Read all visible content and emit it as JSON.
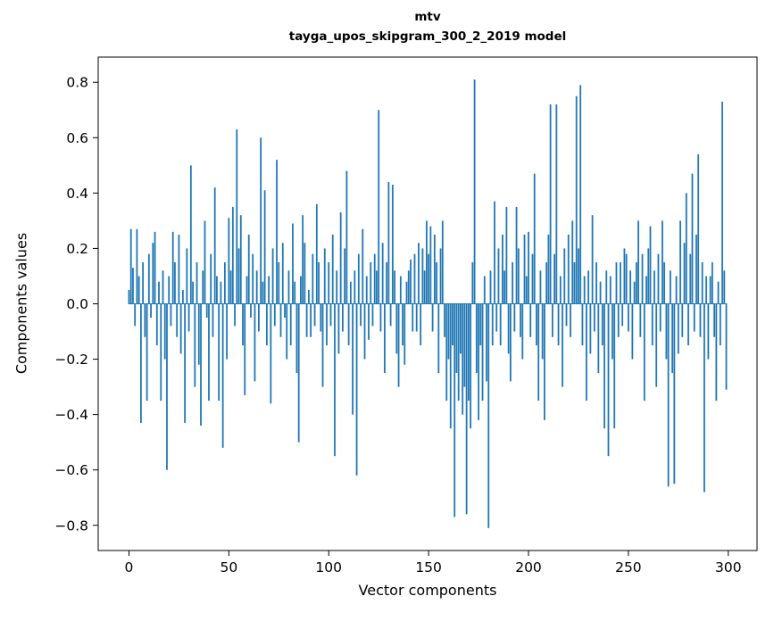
{
  "figure": {
    "title_line1": "mtv",
    "title_line2": "tayga_upos_skipgram_300_2_2019 model",
    "xlabel": "Vector components",
    "ylabel": "Components values"
  },
  "chart_data": {
    "type": "bar",
    "title": "mtv\ntayga_upos_skipgram_300_2_2019 model",
    "xlabel": "Vector components",
    "ylabel": "Components values",
    "bar_color": "#1f77b4",
    "spine_color": "#000000",
    "grid": false,
    "legend": false,
    "xlim": [
      -15.4,
      314.4
    ],
    "ylim": [
      -0.891,
      0.891
    ],
    "x_ticks": [
      0,
      50,
      100,
      150,
      200,
      250,
      300
    ],
    "y_ticks": [
      -0.8,
      -0.6,
      -0.4,
      -0.2,
      0.0,
      0.2,
      0.4,
      0.6,
      0.8
    ],
    "x": "index 0..299",
    "values": [
      0.05,
      0.27,
      0.13,
      -0.08,
      0.27,
      0.1,
      -0.43,
      0.15,
      -0.12,
      -0.35,
      0.18,
      -0.05,
      0.22,
      0.26,
      -0.15,
      0.08,
      -0.35,
      0.12,
      -0.2,
      -0.6,
      0.1,
      -0.08,
      0.26,
      0.15,
      -0.12,
      0.25,
      -0.18,
      0.05,
      -0.43,
      0.2,
      -0.1,
      0.5,
      0.08,
      -0.3,
      0.15,
      -0.22,
      -0.44,
      0.12,
      0.3,
      -0.05,
      -0.35,
      0.18,
      -0.12,
      0.42,
      0.1,
      -0.35,
      0.08,
      -0.52,
      0.15,
      -0.2,
      0.31,
      0.12,
      0.35,
      -0.08,
      0.63,
      0.2,
      0.32,
      -0.15,
      -0.33,
      0.1,
      0.25,
      -0.05,
      0.18,
      -0.28,
      0.12,
      -0.1,
      0.6,
      0.08,
      0.41,
      -0.15,
      0.1,
      -0.36,
      0.2,
      -0.08,
      0.52,
      0.15,
      -0.12,
      0.22,
      -0.05,
      -0.2,
      0.12,
      -0.15,
      0.29,
      0.08,
      -0.25,
      -0.5,
      0.1,
      0.32,
      0.22,
      -0.12,
      0.05,
      -0.12,
      0.18,
      -0.08,
      0.36,
      0.15,
      -0.1,
      -0.3,
      0.2,
      -0.15,
      0.15,
      -0.08,
      0.25,
      -0.55,
      0.12,
      -0.18,
      0.33,
      -0.1,
      0.2,
      0.48,
      -0.15,
      0.08,
      -0.4,
      0.12,
      -0.62,
      0.18,
      -0.08,
      0.27,
      -0.2,
      0.1,
      -0.13,
      0.15,
      -0.08,
      0.18,
      0.12,
      0.7,
      -0.1,
      0.22,
      -0.25,
      0.15,
      0.44,
      -0.08,
      0.43,
      0.12,
      -0.18,
      -0.3,
      0.1,
      -0.15,
      -0.22,
      0.08,
      0.12,
      0.16,
      -0.1,
      0.18,
      -0.1,
      0.22,
      -0.15,
      0.2,
      0.12,
      0.3,
      0.18,
      0.28,
      -0.1,
      0.25,
      0.15,
      -0.25,
      0.2,
      0.3,
      -0.12,
      -0.35,
      -0.2,
      -0.45,
      -0.15,
      -0.77,
      -0.25,
      -0.35,
      -0.18,
      -0.4,
      -0.3,
      -0.76,
      -0.35,
      -0.45,
      0.15,
      0.81,
      -0.25,
      -0.42,
      -0.15,
      -0.35,
      0.1,
      -0.28,
      -0.81,
      0.12,
      -0.15,
      0.37,
      -0.1,
      0.2,
      -0.15,
      0.25,
      0.12,
      0.35,
      -0.18,
      -0.28,
      0.15,
      -0.1,
      0.35,
      0.2,
      -0.12,
      -0.2,
      0.25,
      0.1,
      0.26,
      -0.12,
      0.18,
      0.47,
      -0.15,
      -0.35,
      0.12,
      -0.2,
      -0.42,
      0.15,
      0.25,
      0.72,
      -0.12,
      0.18,
      0.72,
      -0.15,
      0.1,
      -0.3,
      0.2,
      -0.08,
      0.25,
      -0.12,
      0.3,
      0.15,
      0.75,
      0.2,
      0.79,
      -0.15,
      0.1,
      -0.35,
      0.12,
      -0.18,
      0.32,
      -0.1,
      0.15,
      -0.25,
      0.08,
      -0.15,
      -0.45,
      0.12,
      -0.55,
      0.1,
      -0.2,
      -0.45,
      0.15,
      -0.12,
      0.15,
      -0.08,
      0.2,
      0.18,
      -0.1,
      0.12,
      -0.2,
      0.08,
      0.15,
      0.3,
      -0.12,
      0.18,
      -0.35,
      0.1,
      0.2,
      0.28,
      -0.15,
      0.12,
      -0.3,
      0.18,
      -0.1,
      0.3,
      0.15,
      -0.2,
      -0.66,
      0.12,
      -0.25,
      -0.65,
      0.1,
      -0.18,
      0.3,
      -0.12,
      0.22,
      0.4,
      -0.15,
      0.18,
      0.47,
      -0.1,
      0.25,
      0.54,
      -0.12,
      0.15,
      -0.68,
      0.1,
      -0.2,
      0.1,
      0.15,
      -0.12,
      -0.35,
      0.08,
      -0.15,
      0.73,
      0.12,
      -0.31
    ]
  }
}
